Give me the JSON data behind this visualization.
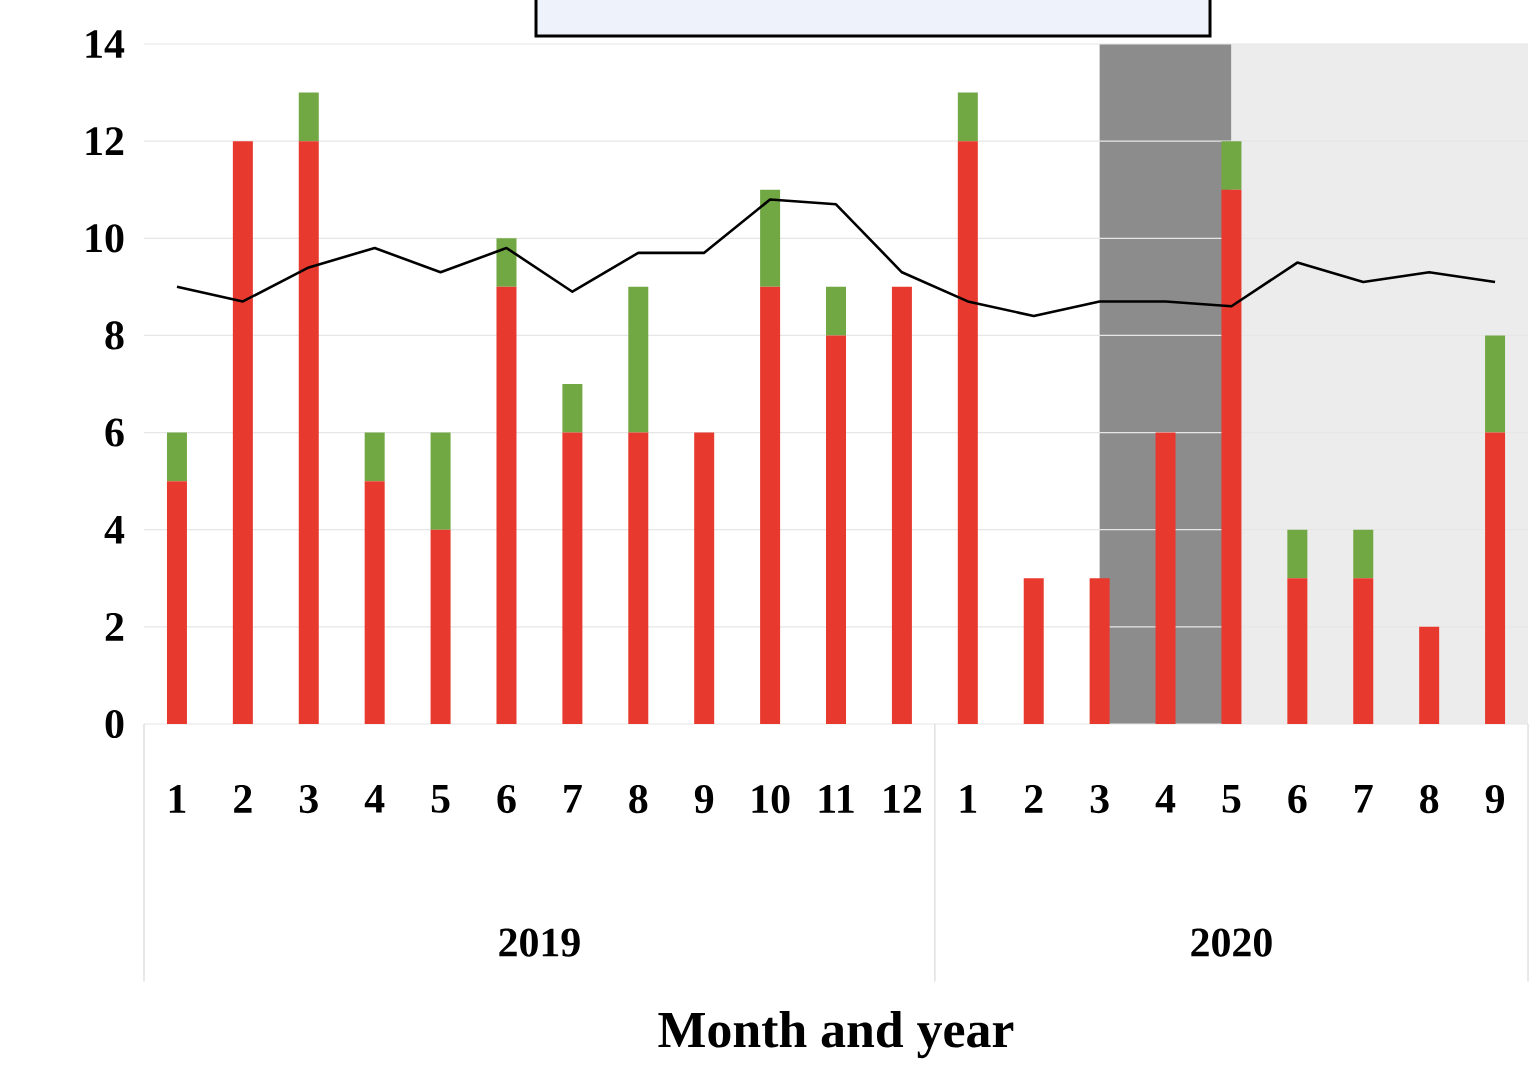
{
  "chart_data": {
    "type": "bar",
    "stacked": true,
    "xlabel": "Month and year",
    "categories": [
      "1",
      "2",
      "3",
      "4",
      "5",
      "6",
      "7",
      "8",
      "9",
      "10",
      "11",
      "12",
      "1",
      "2",
      "3",
      "4",
      "5",
      "6",
      "7",
      "8",
      "9"
    ],
    "annotations": [
      "2019",
      "2020"
    ],
    "series": [
      {
        "color": "#e8392e",
        "values": [
          5,
          12,
          12,
          5,
          4,
          9,
          6,
          6,
          6,
          9,
          8,
          9,
          12,
          3,
          3,
          6,
          11,
          3,
          3,
          2,
          6
        ]
      },
      {
        "color": "#72a844",
        "values": [
          1,
          0,
          1,
          1,
          2,
          1,
          1,
          3,
          0,
          2,
          1,
          0,
          1,
          0,
          0,
          0,
          1,
          1,
          1,
          0,
          2
        ]
      },
      {
        "type": "line",
        "color": "#000000",
        "values": [
          9.0,
          8.7,
          9.4,
          9.8,
          9.3,
          9.8,
          8.9,
          9.7,
          9.7,
          10.8,
          10.7,
          9.3,
          8.7,
          8.4,
          8.7,
          8.7,
          8.6,
          9.5,
          9.1,
          9.3,
          9.1
        ]
      }
    ],
    "ylim": [
      0,
      14
    ],
    "yticks": [
      0,
      2,
      4,
      6,
      8,
      10,
      12,
      14
    ],
    "grid": "y",
    "marker": "none",
    "line_style": "solid"
  }
}
